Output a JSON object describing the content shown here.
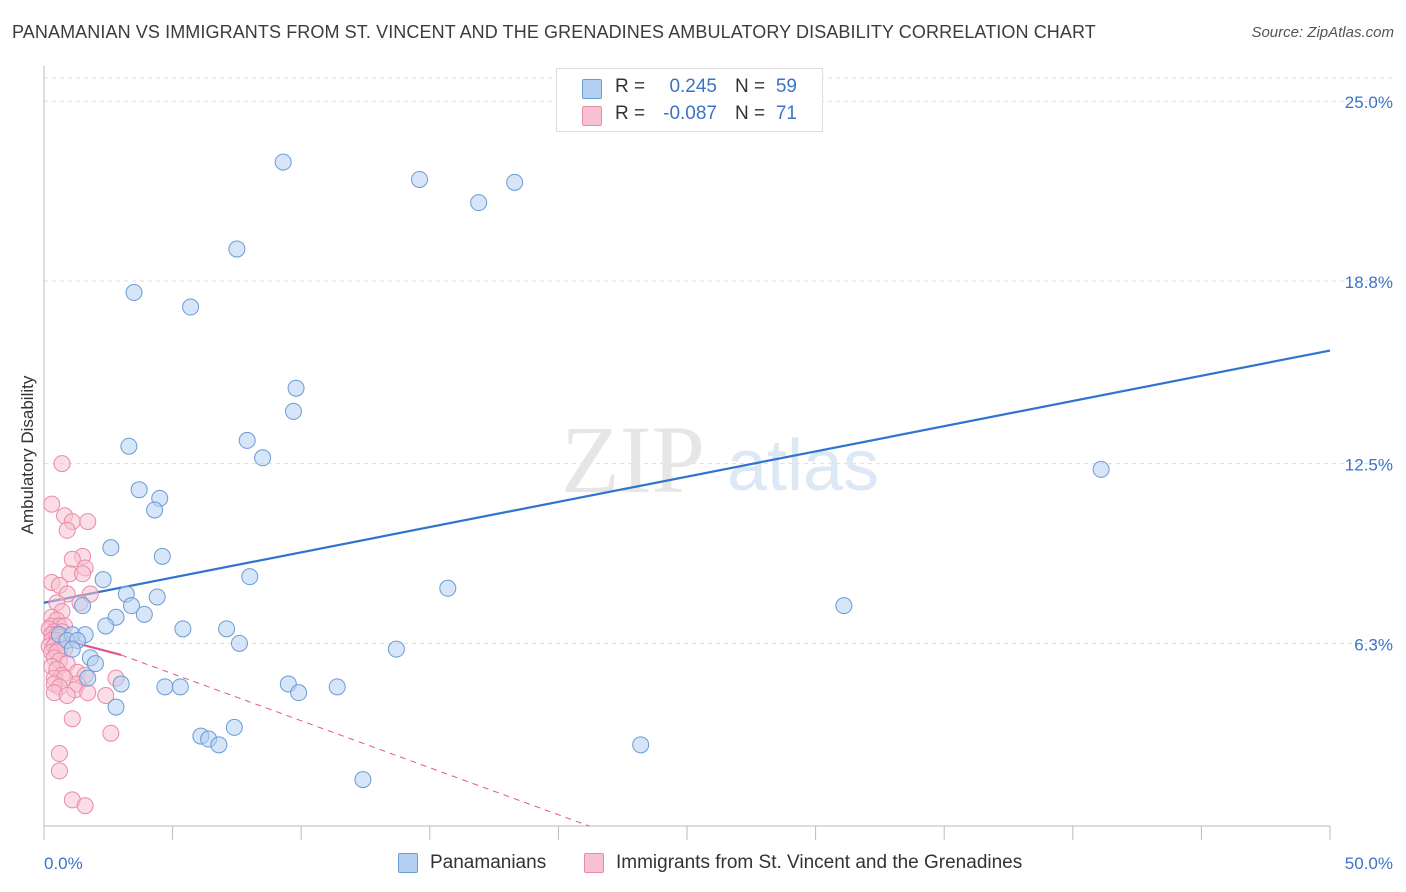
{
  "title": "PANAMANIAN VS IMMIGRANTS FROM ST. VINCENT AND THE GRENADINES AMBULATORY DISABILITY CORRELATION CHART",
  "source": "Source: ZipAtlas.com",
  "watermark": {
    "zip": "ZIP",
    "atlas": "atlas"
  },
  "legend": {
    "rows": [
      {
        "r_label": "R =",
        "r_value": "0.245",
        "n_label": "N =",
        "n_value": "59"
      },
      {
        "r_label": "R =",
        "r_value": "-0.087",
        "n_label": "N =",
        "n_value": "71"
      }
    ]
  },
  "bottom_legend": {
    "series1": "Panamanians",
    "series2": "Immigrants from St. Vincent and the Grenadines"
  },
  "colors": {
    "blue_fill": "#b5cff0",
    "blue_stroke": "#6a9bd6",
    "blue_line": "#2f74cf",
    "pink_fill": "#f7c1d1",
    "pink_stroke": "#e98aa8",
    "pink_line": "#e0588a",
    "axis_label": "#3b74c7",
    "grid": "#dddddd"
  },
  "chart_data": {
    "type": "scatter",
    "title": "PANAMANIAN VS IMMIGRANTS FROM ST. VINCENT AND THE GRENADINES AMBULATORY DISABILITY CORRELATION CHART",
    "xlabel": "",
    "ylabel": "Ambulatory Disability",
    "xlim": [
      0,
      50
    ],
    "ylim": [
      0,
      25.8
    ],
    "x_tick_labels": [
      "0.0%",
      "50.0%"
    ],
    "y_ticks": [
      6.3,
      12.5,
      18.8,
      25.0
    ],
    "y_tick_labels": [
      "6.3%",
      "12.5%",
      "18.8%",
      "25.0%"
    ],
    "grid": true,
    "series": [
      {
        "name": "Panamanians",
        "points": [
          [
            9.3,
            22.9
          ],
          [
            14.6,
            22.3
          ],
          [
            18.3,
            22.2
          ],
          [
            16.9,
            21.5
          ],
          [
            7.5,
            19.9
          ],
          [
            3.5,
            18.4
          ],
          [
            5.7,
            17.9
          ],
          [
            9.8,
            15.1
          ],
          [
            9.7,
            14.3
          ],
          [
            3.3,
            13.1
          ],
          [
            7.9,
            13.3
          ],
          [
            8.5,
            12.7
          ],
          [
            41.1,
            12.3
          ],
          [
            3.7,
            11.6
          ],
          [
            4.5,
            11.3
          ],
          [
            4.3,
            10.9
          ],
          [
            2.6,
            9.6
          ],
          [
            4.6,
            9.3
          ],
          [
            2.3,
            8.5
          ],
          [
            8.0,
            8.6
          ],
          [
            15.7,
            8.2
          ],
          [
            1.5,
            7.6
          ],
          [
            3.2,
            8.0
          ],
          [
            4.4,
            7.9
          ],
          [
            3.4,
            7.6
          ],
          [
            31.1,
            7.6
          ],
          [
            2.8,
            7.2
          ],
          [
            3.9,
            7.3
          ],
          [
            2.4,
            6.9
          ],
          [
            5.4,
            6.8
          ],
          [
            7.1,
            6.8
          ],
          [
            0.6,
            6.6
          ],
          [
            1.1,
            6.6
          ],
          [
            1.6,
            6.6
          ],
          [
            0.9,
            6.4
          ],
          [
            1.3,
            6.4
          ],
          [
            1.1,
            6.1
          ],
          [
            7.6,
            6.3
          ],
          [
            13.7,
            6.1
          ],
          [
            1.8,
            5.8
          ],
          [
            2.0,
            5.6
          ],
          [
            1.7,
            5.1
          ],
          [
            3.0,
            4.9
          ],
          [
            4.7,
            4.8
          ],
          [
            5.3,
            4.8
          ],
          [
            9.5,
            4.9
          ],
          [
            11.4,
            4.8
          ],
          [
            9.9,
            4.6
          ],
          [
            2.8,
            4.1
          ],
          [
            7.4,
            3.4
          ],
          [
            6.1,
            3.1
          ],
          [
            6.4,
            3.0
          ],
          [
            6.8,
            2.8
          ],
          [
            23.2,
            2.8
          ],
          [
            12.4,
            1.6
          ]
        ]
      },
      {
        "name": "Immigrants from St. Vincent and the Grenadines",
        "points": [
          [
            0.7,
            12.5
          ],
          [
            0.3,
            11.1
          ],
          [
            0.8,
            10.7
          ],
          [
            1.1,
            10.5
          ],
          [
            1.7,
            10.5
          ],
          [
            0.9,
            10.2
          ],
          [
            1.5,
            9.3
          ],
          [
            1.1,
            9.2
          ],
          [
            1.6,
            8.9
          ],
          [
            1.0,
            8.7
          ],
          [
            1.5,
            8.7
          ],
          [
            0.3,
            8.4
          ],
          [
            0.6,
            8.3
          ],
          [
            0.9,
            8.0
          ],
          [
            1.8,
            8.0
          ],
          [
            0.5,
            7.7
          ],
          [
            1.4,
            7.7
          ],
          [
            0.7,
            7.4
          ],
          [
            0.3,
            7.2
          ],
          [
            0.5,
            7.1
          ],
          [
            0.3,
            6.9
          ],
          [
            0.6,
            6.9
          ],
          [
            0.8,
            6.9
          ],
          [
            0.2,
            6.8
          ],
          [
            0.4,
            6.7
          ],
          [
            0.7,
            6.7
          ],
          [
            0.3,
            6.6
          ],
          [
            0.5,
            6.6
          ],
          [
            0.6,
            6.5
          ],
          [
            0.3,
            6.4
          ],
          [
            0.5,
            6.4
          ],
          [
            0.7,
            6.3
          ],
          [
            0.2,
            6.2
          ],
          [
            0.4,
            6.2
          ],
          [
            0.6,
            6.1
          ],
          [
            0.8,
            6.1
          ],
          [
            0.3,
            6.0
          ],
          [
            0.5,
            6.0
          ],
          [
            0.4,
            5.8
          ],
          [
            0.6,
            5.7
          ],
          [
            0.9,
            5.6
          ],
          [
            0.3,
            5.5
          ],
          [
            0.5,
            5.4
          ],
          [
            1.3,
            5.3
          ],
          [
            0.7,
            5.2
          ],
          [
            0.4,
            5.1
          ],
          [
            0.8,
            5.1
          ],
          [
            1.6,
            5.2
          ],
          [
            0.4,
            4.9
          ],
          [
            1.3,
            4.9
          ],
          [
            2.8,
            5.1
          ],
          [
            0.6,
            4.8
          ],
          [
            1.2,
            4.7
          ],
          [
            0.4,
            4.6
          ],
          [
            0.9,
            4.5
          ],
          [
            1.7,
            4.6
          ],
          [
            2.4,
            4.5
          ],
          [
            1.1,
            3.7
          ],
          [
            2.6,
            3.2
          ],
          [
            0.6,
            2.5
          ],
          [
            0.6,
            1.9
          ],
          [
            1.1,
            0.9
          ],
          [
            1.6,
            0.7
          ]
        ]
      }
    ],
    "trendlines": [
      {
        "series": "Panamanians",
        "x": [
          0,
          50
        ],
        "y": [
          7.7,
          16.4
        ],
        "style": "solid"
      },
      {
        "series": "Immigrants from St. Vincent and the Grenadines",
        "x": [
          0,
          3
        ],
        "y": [
          6.6,
          5.9
        ],
        "style": "solid"
      },
      {
        "series": "Immigrants from St. Vincent and the Grenadines",
        "x": [
          3,
          21.2
        ],
        "y": [
          5.9,
          0.0
        ],
        "style": "dashed"
      }
    ]
  }
}
